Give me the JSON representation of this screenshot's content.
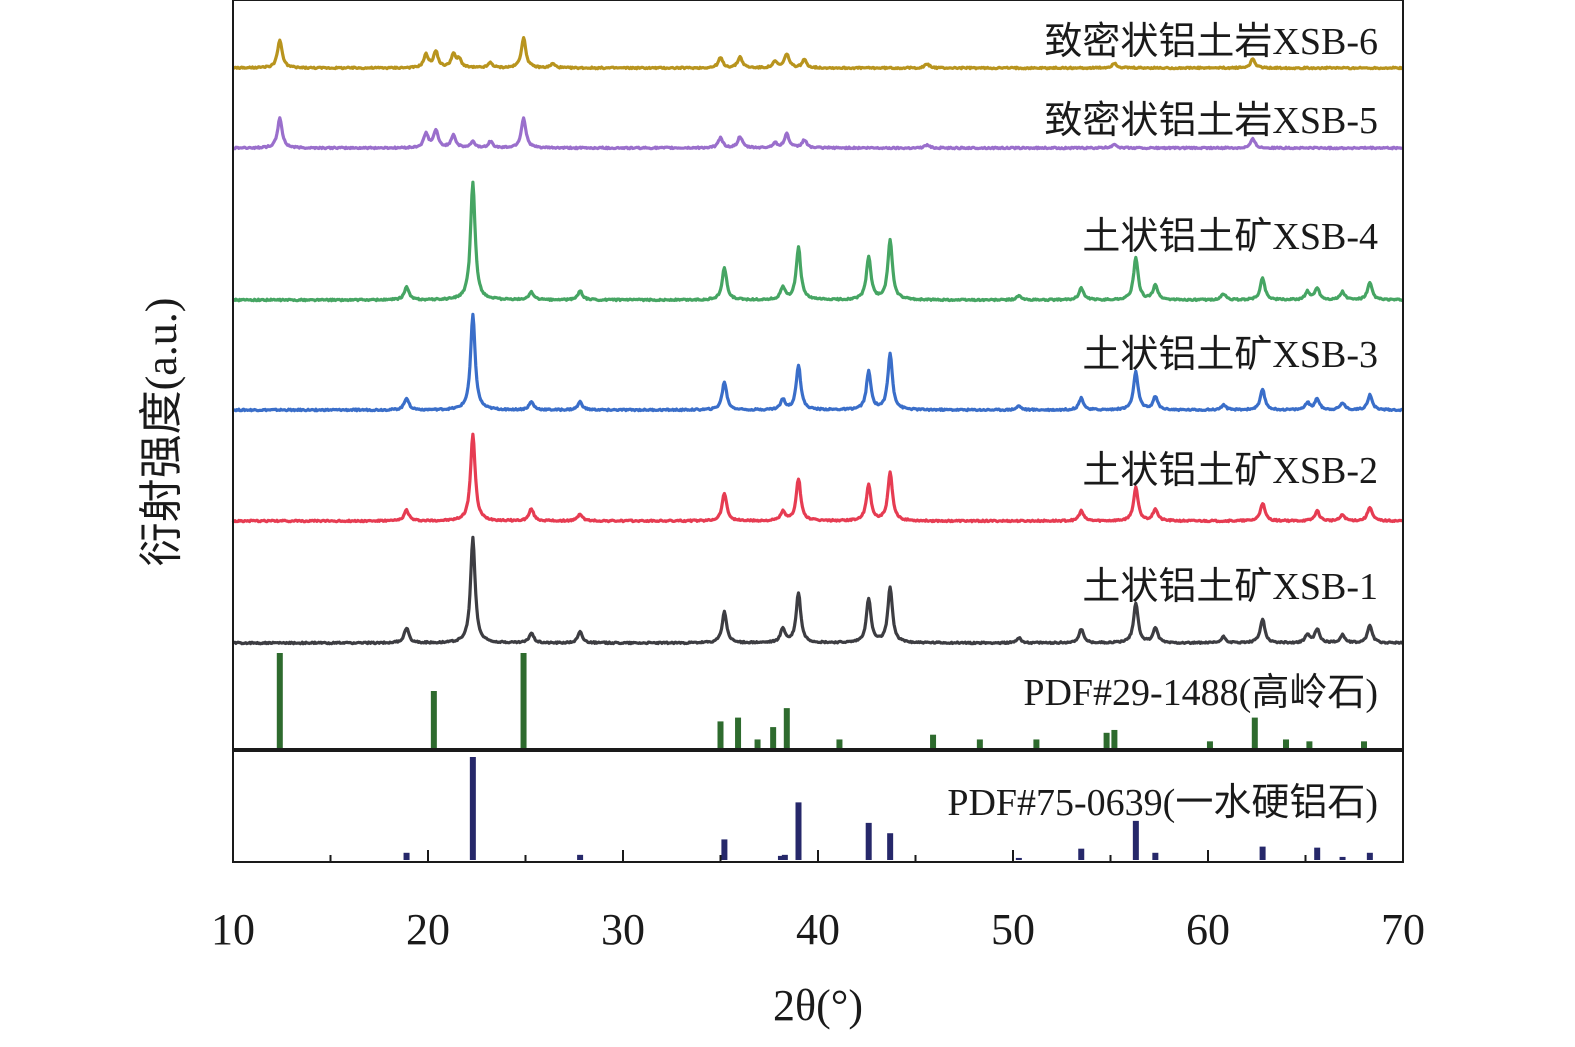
{
  "chart_data": {
    "type": "line",
    "title": "",
    "xlabel": "2θ(°)",
    "ylabel": "衍射强度(a.u.)",
    "xlim": [
      10,
      70
    ],
    "x_ticks": [
      "10",
      "20",
      "30",
      "40",
      "50",
      "60",
      "70"
    ],
    "grid": false,
    "stacked_offset": true,
    "series": [
      {
        "name": "致密状铝土岩XSB-6",
        "color": "#b8941e",
        "peaks": [
          [
            12.4,
            28
          ],
          [
            19.9,
            13
          ],
          [
            20.4,
            16
          ],
          [
            21.3,
            13
          ],
          [
            21.6,
            8
          ],
          [
            23.2,
            5
          ],
          [
            24.9,
            30
          ],
          [
            26.4,
            4
          ],
          [
            35.0,
            10
          ],
          [
            36.0,
            11
          ],
          [
            37.8,
            6
          ],
          [
            38.4,
            14
          ],
          [
            39.3,
            8
          ],
          [
            45.6,
            4
          ],
          [
            55.2,
            5
          ],
          [
            62.3,
            9
          ]
        ]
      },
      {
        "name": "致密状铝土岩XSB-5",
        "color": "#9a6fcc",
        "peaks": [
          [
            12.4,
            30
          ],
          [
            19.9,
            14
          ],
          [
            20.4,
            17
          ],
          [
            21.3,
            13
          ],
          [
            22.3,
            6
          ],
          [
            23.2,
            6
          ],
          [
            24.9,
            30
          ],
          [
            35.0,
            10
          ],
          [
            36.0,
            11
          ],
          [
            37.8,
            5
          ],
          [
            38.4,
            14
          ],
          [
            39.3,
            8
          ],
          [
            45.6,
            3
          ],
          [
            55.2,
            4
          ],
          [
            62.3,
            9
          ]
        ]
      },
      {
        "name": "土状铝土矿XSB-4",
        "color": "#46a563",
        "peaks": [
          [
            18.9,
            13
          ],
          [
            22.3,
            118
          ],
          [
            25.3,
            8
          ],
          [
            27.8,
            9
          ],
          [
            35.2,
            32
          ],
          [
            38.2,
            12
          ],
          [
            39.0,
            52
          ],
          [
            42.6,
            43
          ],
          [
            43.7,
            60
          ],
          [
            50.3,
            4
          ],
          [
            53.5,
            12
          ],
          [
            56.3,
            42
          ],
          [
            57.3,
            15
          ],
          [
            60.8,
            6
          ],
          [
            62.8,
            22
          ],
          [
            65.1,
            8
          ],
          [
            65.6,
            12
          ],
          [
            66.9,
            8
          ],
          [
            68.3,
            17
          ]
        ]
      },
      {
        "name": "土状铝土矿XSB-3",
        "color": "#3a6ec9",
        "peaks": [
          [
            18.9,
            12
          ],
          [
            22.3,
            95
          ],
          [
            25.3,
            8
          ],
          [
            27.8,
            8
          ],
          [
            35.2,
            28
          ],
          [
            38.2,
            10
          ],
          [
            39.0,
            45
          ],
          [
            42.6,
            38
          ],
          [
            43.7,
            56
          ],
          [
            50.3,
            4
          ],
          [
            53.5,
            12
          ],
          [
            56.3,
            38
          ],
          [
            57.3,
            13
          ],
          [
            60.8,
            5
          ],
          [
            62.8,
            20
          ],
          [
            65.1,
            7
          ],
          [
            65.6,
            11
          ],
          [
            66.9,
            7
          ],
          [
            68.3,
            15
          ]
        ]
      },
      {
        "name": "土状铝土矿XSB-2",
        "color": "#e63c52",
        "peaks": [
          [
            18.9,
            11
          ],
          [
            22.3,
            87
          ],
          [
            25.3,
            12
          ],
          [
            27.8,
            7
          ],
          [
            35.2,
            28
          ],
          [
            38.2,
            9
          ],
          [
            39.0,
            42
          ],
          [
            42.6,
            36
          ],
          [
            43.7,
            48
          ],
          [
            53.5,
            10
          ],
          [
            56.3,
            33
          ],
          [
            57.3,
            12
          ],
          [
            62.8,
            18
          ],
          [
            65.6,
            10
          ],
          [
            66.9,
            6
          ],
          [
            68.3,
            14
          ]
        ]
      },
      {
        "name": "土状铝土矿XSB-1",
        "color": "#3d3d42",
        "peaks": [
          [
            18.9,
            15
          ],
          [
            22.3,
            105
          ],
          [
            25.3,
            10
          ],
          [
            27.8,
            11
          ],
          [
            35.2,
            31
          ],
          [
            38.2,
            14
          ],
          [
            39.0,
            50
          ],
          [
            42.6,
            44
          ],
          [
            43.7,
            56
          ],
          [
            50.3,
            5
          ],
          [
            53.5,
            14
          ],
          [
            56.3,
            40
          ],
          [
            57.3,
            15
          ],
          [
            60.8,
            6
          ],
          [
            62.8,
            24
          ],
          [
            65.1,
            8
          ],
          [
            65.6,
            14
          ],
          [
            66.9,
            8
          ],
          [
            68.3,
            18
          ]
        ]
      }
    ],
    "reference_patterns": [
      {
        "name": "PDF#29-1488(高岭石)",
        "color": "#2e6b2e",
        "lines": [
          [
            12.4,
            100
          ],
          [
            20.3,
            60
          ],
          [
            24.9,
            100
          ],
          [
            35.0,
            28
          ],
          [
            35.9,
            32
          ],
          [
            36.9,
            9
          ],
          [
            37.7,
            22
          ],
          [
            38.4,
            42
          ],
          [
            41.1,
            9
          ],
          [
            45.9,
            14
          ],
          [
            48.3,
            9
          ],
          [
            51.2,
            9
          ],
          [
            54.8,
            16
          ],
          [
            55.2,
            19
          ],
          [
            60.1,
            7
          ],
          [
            62.4,
            32
          ],
          [
            64.0,
            9
          ],
          [
            65.2,
            7
          ],
          [
            68.0,
            7
          ]
        ]
      },
      {
        "name": "PDF#75-0639(一水硬铝石)",
        "color": "#26286a",
        "lines": [
          [
            18.9,
            7
          ],
          [
            22.3,
            100
          ],
          [
            27.8,
            5
          ],
          [
            35.2,
            20
          ],
          [
            38.1,
            4
          ],
          [
            38.3,
            5
          ],
          [
            39.0,
            56
          ],
          [
            42.6,
            36
          ],
          [
            43.7,
            26
          ],
          [
            50.3,
            2
          ],
          [
            53.5,
            11
          ],
          [
            56.3,
            38
          ],
          [
            57.3,
            7
          ],
          [
            62.8,
            13
          ],
          [
            65.6,
            12
          ],
          [
            66.9,
            3
          ],
          [
            68.3,
            7
          ]
        ]
      }
    ]
  }
}
